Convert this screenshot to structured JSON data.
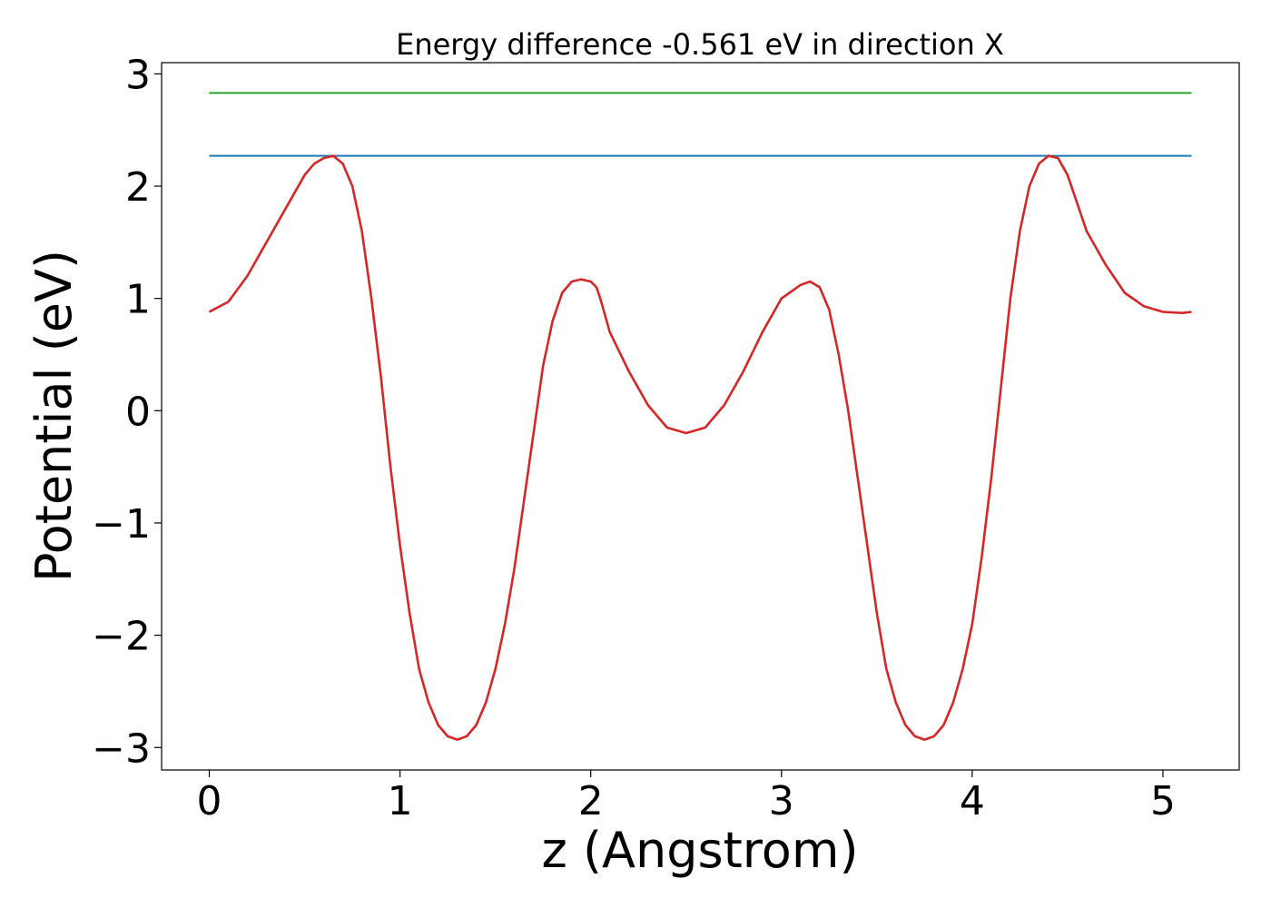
{
  "chart_data": {
    "type": "line",
    "title": "Energy difference -0.561 eV in direction X",
    "xlabel": "z (Angstrom)",
    "ylabel": "Potential (eV)",
    "xlim": [
      -0.25,
      5.4
    ],
    "ylim": [
      -3.2,
      3.1
    ],
    "xticks": [
      0,
      1,
      2,
      3,
      4,
      5
    ],
    "xtick_labels": [
      "0",
      "1",
      "2",
      "3",
      "4",
      "5"
    ],
    "yticks": [
      -3,
      -2,
      -1,
      0,
      1,
      2,
      3
    ],
    "ytick_labels": [
      "−3",
      "−2",
      "−1",
      "0",
      "1",
      "2",
      "3"
    ],
    "grid": false,
    "legend": "none",
    "series": [
      {
        "color": "#2ca02c",
        "x": [
          0,
          5.15
        ],
        "y": [
          2.83,
          2.83
        ]
      },
      {
        "color": "#1f77b4",
        "x": [
          0,
          5.15
        ],
        "y": [
          2.27,
          2.27
        ]
      },
      {
        "color": "#d62728",
        "x": [
          0,
          0.1,
          0.2,
          0.3,
          0.4,
          0.5,
          0.55,
          0.6,
          0.65,
          0.7,
          0.75,
          0.8,
          0.85,
          0.9,
          0.95,
          1.0,
          1.05,
          1.1,
          1.15,
          1.2,
          1.25,
          1.3,
          1.35,
          1.4,
          1.45,
          1.5,
          1.55,
          1.6,
          1.65,
          1.7,
          1.75,
          1.8,
          1.85,
          1.9,
          1.95,
          2.0,
          2.03,
          2.05,
          2.1,
          2.2,
          2.3,
          2.4,
          2.5,
          2.6,
          2.7,
          2.8,
          2.9,
          3.0,
          3.1,
          3.15,
          3.2,
          3.25,
          3.3,
          3.35,
          3.4,
          3.45,
          3.5,
          3.55,
          3.6,
          3.65,
          3.7,
          3.75,
          3.8,
          3.85,
          3.9,
          3.95,
          4.0,
          4.05,
          4.1,
          4.15,
          4.2,
          4.25,
          4.3,
          4.35,
          4.4,
          4.45,
          4.5,
          4.55,
          4.6,
          4.7,
          4.8,
          4.9,
          5.0,
          5.1,
          5.15
        ],
        "y": [
          0.88,
          0.97,
          1.2,
          1.5,
          1.8,
          2.1,
          2.2,
          2.25,
          2.27,
          2.2,
          2.0,
          1.6,
          1.0,
          0.3,
          -0.5,
          -1.2,
          -1.8,
          -2.3,
          -2.6,
          -2.8,
          -2.9,
          -2.93,
          -2.9,
          -2.8,
          -2.6,
          -2.3,
          -1.9,
          -1.4,
          -0.8,
          -0.2,
          0.4,
          0.8,
          1.05,
          1.15,
          1.17,
          1.15,
          1.1,
          1.0,
          0.7,
          0.35,
          0.05,
          -0.15,
          -0.2,
          -0.15,
          0.05,
          0.35,
          0.7,
          1.0,
          1.12,
          1.15,
          1.1,
          0.9,
          0.5,
          0.0,
          -0.6,
          -1.2,
          -1.8,
          -2.3,
          -2.6,
          -2.8,
          -2.9,
          -2.93,
          -2.9,
          -2.8,
          -2.6,
          -2.3,
          -1.9,
          -1.3,
          -0.6,
          0.2,
          1.0,
          1.6,
          2.0,
          2.2,
          2.27,
          2.25,
          2.1,
          1.85,
          1.6,
          1.3,
          1.05,
          0.93,
          0.88,
          0.87,
          0.88
        ]
      }
    ]
  }
}
